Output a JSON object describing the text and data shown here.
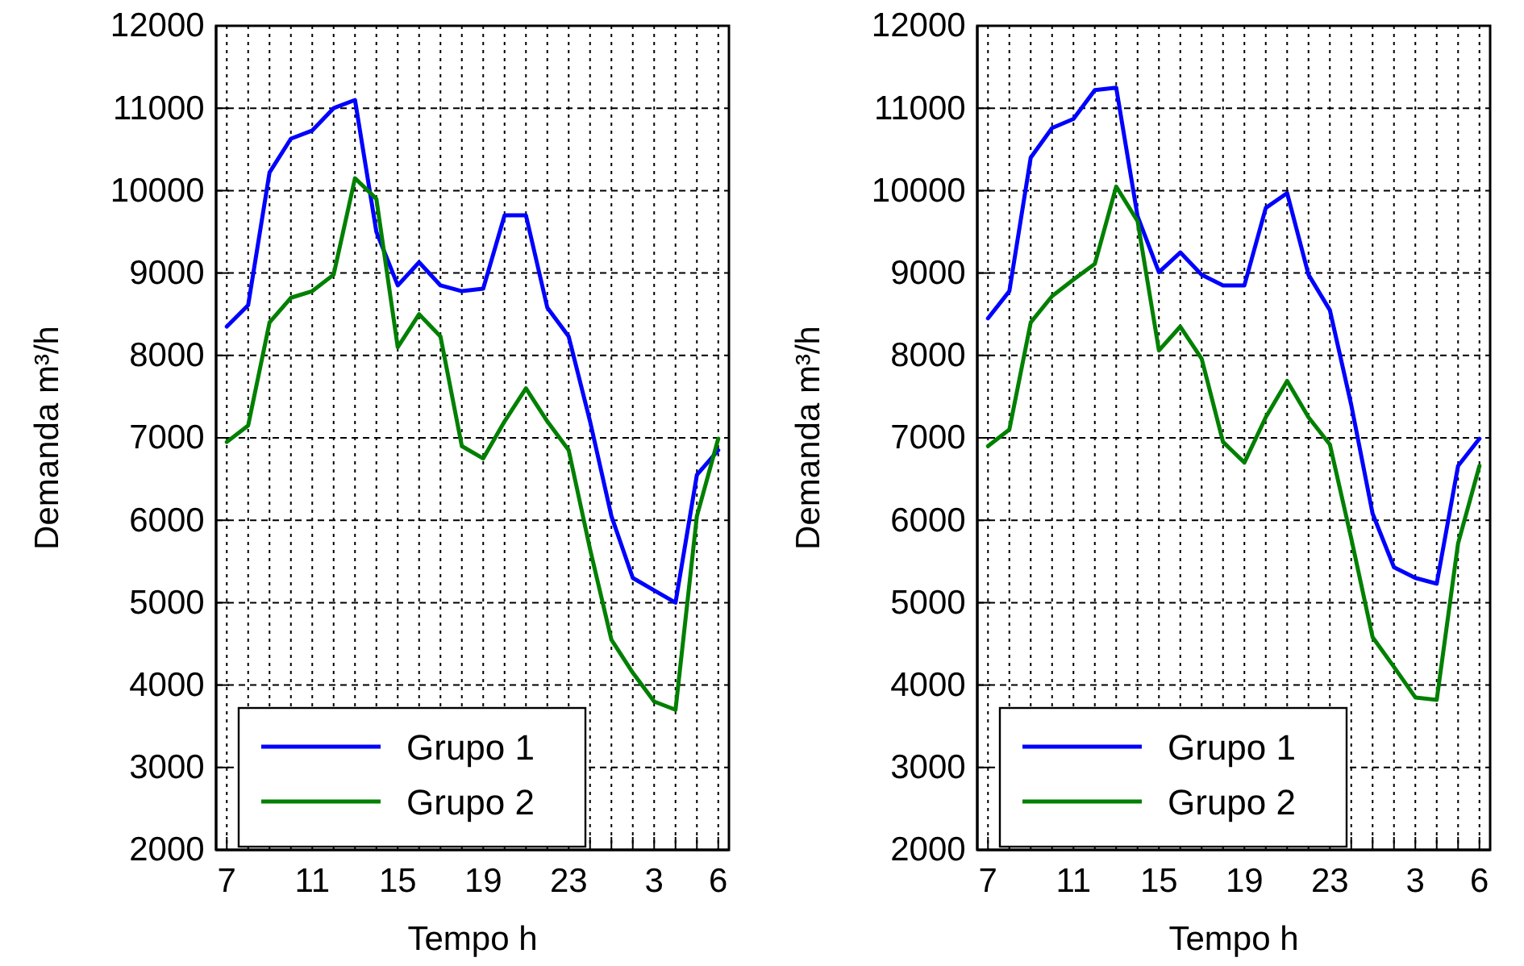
{
  "chart_data": [
    {
      "type": "line",
      "xlabel": "Tempo h",
      "ylabel": "Demanda  m³/h",
      "categories": [
        "7",
        null,
        null,
        null,
        "11",
        null,
        null,
        null,
        "15",
        null,
        null,
        null,
        "19",
        null,
        null,
        null,
        "23",
        null,
        null,
        null,
        "3",
        null,
        null,
        "6"
      ],
      "ylim": [
        2000,
        12000
      ],
      "yticks": [
        2000,
        3000,
        4000,
        5000,
        6000,
        7000,
        8000,
        9000,
        10000,
        11000,
        12000
      ],
      "grid": true,
      "legend": "bottom left",
      "series": [
        {
          "name": "Grupo 1",
          "color": "#0000ff",
          "values": [
            8350,
            8610,
            10220,
            10630,
            10730,
            11000,
            11100,
            9500,
            8850,
            9130,
            8850,
            8780,
            8810,
            9700,
            9700,
            8580,
            8230,
            7200,
            6050,
            5300,
            5150,
            5000,
            6550,
            6850
          ]
        },
        {
          "name": "Grupo 2",
          "color": "#008000",
          "values": [
            6950,
            7150,
            8400,
            8700,
            8780,
            8980,
            10150,
            9900,
            8100,
            8500,
            8230,
            6900,
            6750,
            7200,
            7600,
            7200,
            6850,
            5650,
            4550,
            4150,
            3800,
            3700,
            6050,
            6990
          ]
        }
      ]
    },
    {
      "type": "line",
      "xlabel": "Tempo h",
      "ylabel": "Demanda  m³/h",
      "categories": [
        "7",
        null,
        null,
        null,
        "11",
        null,
        null,
        null,
        "15",
        null,
        null,
        null,
        "19",
        null,
        null,
        null,
        "23",
        null,
        null,
        null,
        "3",
        null,
        null,
        "6"
      ],
      "ylim": [
        2000,
        12000
      ],
      "yticks": [
        2000,
        3000,
        4000,
        5000,
        6000,
        7000,
        8000,
        9000,
        10000,
        11000,
        12000
      ],
      "grid": true,
      "legend": "bottom left",
      "series": [
        {
          "name": "Grupo 1",
          "color": "#0000ff",
          "values": [
            8450,
            8780,
            10400,
            10760,
            10870,
            11220,
            11250,
            9690,
            9010,
            9250,
            8980,
            8850,
            8850,
            9790,
            9970,
            8980,
            8550,
            7400,
            6080,
            5430,
            5300,
            5230,
            6660,
            6990
          ]
        },
        {
          "name": "Grupo 2",
          "color": "#008000",
          "values": [
            6900,
            7100,
            8400,
            8720,
            8920,
            9110,
            10050,
            9630,
            8060,
            8350,
            7960,
            6950,
            6700,
            7250,
            7690,
            7250,
            6920,
            5780,
            4580,
            4220,
            3850,
            3820,
            5720,
            6660
          ]
        }
      ]
    }
  ]
}
